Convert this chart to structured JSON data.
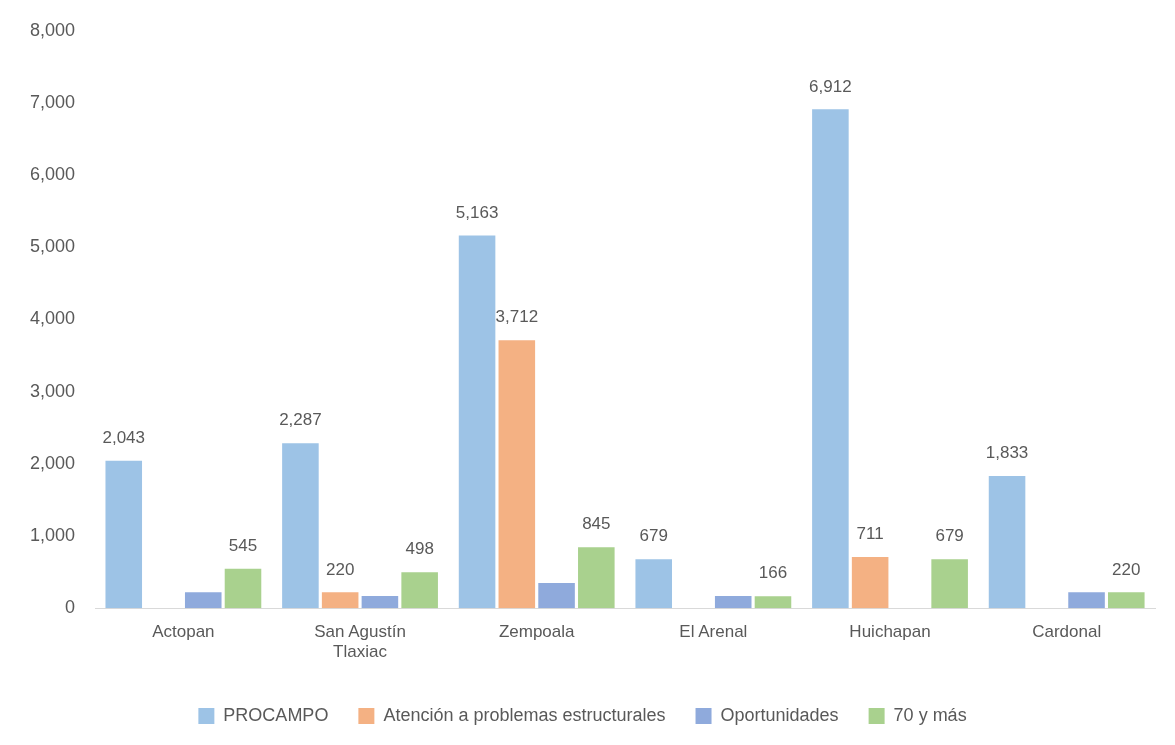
{
  "chart_data": {
    "type": "bar",
    "categories": [
      "Actopan",
      "San Agustín Tlaxiac",
      "Zempoala",
      "El Arenal",
      "Huichapan",
      "Cardonal"
    ],
    "series": [
      {
        "name": "PROCAMPO",
        "color": "#9dc3e6",
        "values": [
          2043,
          2287,
          5163,
          679,
          6912,
          1833
        ],
        "value_labels": [
          "2,043",
          "2,287",
          "5,163",
          "679",
          "6,912",
          "1,833"
        ]
      },
      {
        "name": "Atención a problemas estructurales",
        "color": "#f4b183",
        "values": [
          null,
          220,
          3712,
          null,
          711,
          null
        ],
        "value_labels": [
          null,
          "220",
          "3,712",
          null,
          "711",
          null
        ]
      },
      {
        "name": "Oportunidades",
        "color": "#8faadc",
        "values": [
          220,
          170,
          350,
          170,
          null,
          220
        ]
      },
      {
        "name": "70 y más",
        "color": "#a9d18e",
        "values": [
          545,
          498,
          845,
          166,
          679,
          220
        ],
        "value_labels": [
          "545",
          "498",
          "845",
          "166",
          "679",
          "220"
        ]
      }
    ],
    "ylim": [
      0,
      8000
    ],
    "yticks": [
      {
        "value": 0,
        "label": "0"
      },
      {
        "value": 1000,
        "label": "1,000"
      },
      {
        "value": 2000,
        "label": "2,000"
      },
      {
        "value": 3000,
        "label": "3,000"
      },
      {
        "value": 4000,
        "label": "4,000"
      },
      {
        "value": 5000,
        "label": "5,000"
      },
      {
        "value": 6000,
        "label": "6,000"
      },
      {
        "value": 7000,
        "label": "7,000"
      },
      {
        "value": 8000,
        "label": "8,000"
      }
    ],
    "grid": false,
    "legend": "bottom"
  }
}
